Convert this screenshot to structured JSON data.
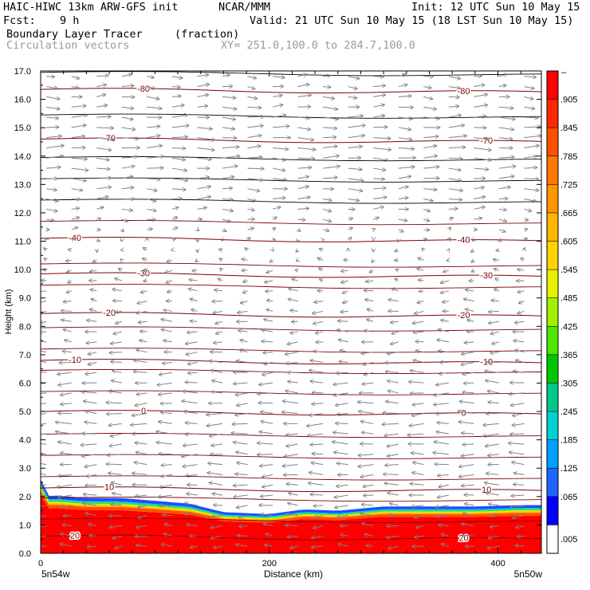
{
  "header": {
    "model_title": "HAIC-HIWC 13km ARW-GFS init",
    "org": "NCAR/MMM",
    "init_time": "Init: 12 UTC Sun 10 May 15",
    "fcst_label": "Fcst:",
    "fcst_value": "9 h",
    "valid_time": "Valid: 21 UTC Sun 10 May 15 (18 LST Sun 10 May 15)",
    "field_name": "Boundary Layer Tracer",
    "field_units": "(fraction)",
    "vector_label": "Circulation vectors",
    "xy_range": "XY= 251.0,100.0 to 284.7,100.0"
  },
  "chart_data": {
    "type": "heatmap",
    "xlabel": "Distance (km)",
    "ylabel": "Height (km)",
    "xlim": [
      0,
      438
    ],
    "ylim": [
      0,
      17
    ],
    "x_ticks": [
      0,
      200,
      400
    ],
    "y_ticks": [
      "0.0",
      "1.0",
      "2.0",
      "3.0",
      "4.0",
      "5.0",
      "6.0",
      "7.0",
      "8.0",
      "9.0",
      "10.0",
      "11.0",
      "12.0",
      "13.0",
      "14.0",
      "15.0",
      "16.0",
      "17.0"
    ],
    "x_endpoints": {
      "left": "5n54w",
      "right": "5n50w"
    },
    "tracer_top_profile": {
      "x": [
        0,
        5,
        10,
        40,
        70,
        100,
        130,
        160,
        200,
        230,
        260,
        300,
        340,
        380,
        420,
        438
      ],
      "z": [
        2.6,
        2.0,
        2.05,
        1.95,
        1.95,
        1.85,
        1.75,
        1.45,
        1.38,
        1.55,
        1.5,
        1.65,
        1.65,
        1.65,
        1.7,
        1.7
      ]
    },
    "colorbar": {
      "labels": [
        ".005",
        ".065",
        ".125",
        ".185",
        ".245",
        ".305",
        ".365",
        ".425",
        ".485",
        ".545",
        ".605",
        ".665",
        ".725",
        ".785",
        ".845",
        ".905"
      ],
      "top_label": "–",
      "colors": [
        "#ffffff",
        "#0000ff",
        "#1f66ff",
        "#00a0ff",
        "#00d2d2",
        "#00c88c",
        "#00c800",
        "#50e600",
        "#a0f000",
        "#e6f000",
        "#ffd200",
        "#ffb400",
        "#ff9600",
        "#ff7800",
        "#ff5000",
        "#ff2800",
        "#ff0000"
      ]
    },
    "temperature_contours": [
      {
        "label": "20",
        "z": 0.6
      },
      {
        "label": "10",
        "z": 2.3
      },
      {
        "label": "0",
        "z": 5.0
      },
      {
        "label": "-10",
        "z": 6.8
      },
      {
        "label": "-20",
        "z": 8.45
      },
      {
        "label": "-30",
        "z": 9.85
      },
      {
        "label": "-40",
        "z": 11.1
      },
      {
        "label": "-70",
        "z": 14.6
      },
      {
        "label": "-80",
        "z": 16.35
      }
    ],
    "contour_color": "#800000",
    "vector_color": "#808080",
    "wind_profile": {
      "z": [
        0.5,
        2.5,
        4.5,
        6.0,
        7.5,
        9.0,
        10.5,
        11.5,
        12.5,
        13.5,
        14.5,
        15.5,
        16.5
      ],
      "u": [
        -0.6,
        -0.8,
        -0.9,
        -0.8,
        -0.6,
        -0.5,
        -0.2,
        0.3,
        0.7,
        0.9,
        1.0,
        0.85,
        0.6
      ]
    }
  }
}
